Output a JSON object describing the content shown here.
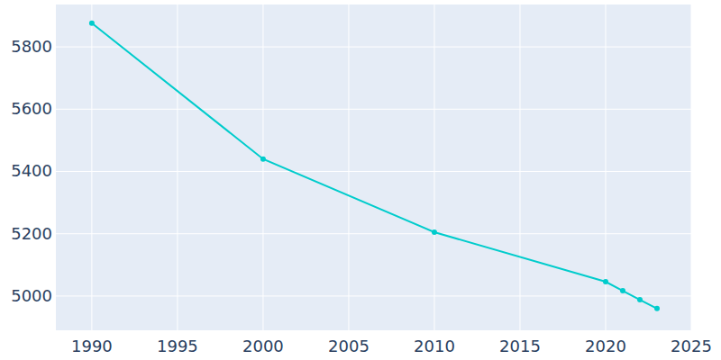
{
  "chart_data": {
    "type": "line",
    "x": [
      1990,
      2000,
      2010,
      2020,
      2021,
      2022,
      2023
    ],
    "values": [
      5876,
      5440,
      5205,
      5046,
      5017,
      4988,
      4960
    ],
    "color": "#00cccc",
    "marker": "circle",
    "xlim": [
      1987.9,
      2025
    ],
    "ylim": [
      4890,
      5936
    ],
    "xticks": [
      1990,
      1995,
      2000,
      2005,
      2010,
      2015,
      2020,
      2025
    ],
    "yticks": [
      5000,
      5200,
      5400,
      5600,
      5800
    ],
    "grid": true
  }
}
